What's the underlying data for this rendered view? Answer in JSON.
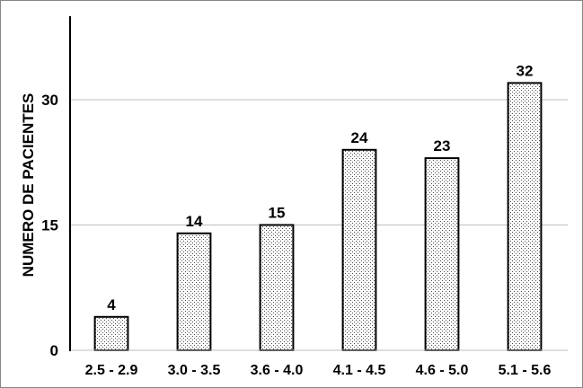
{
  "chart_data": {
    "type": "bar",
    "categories": [
      "2.5 - 2.9",
      "3.0 - 3.5",
      "3.6 - 4.0",
      "4.1 - 4.5",
      "4.6 - 5.0",
      "5.1 - 5.6"
    ],
    "values": [
      4,
      14,
      15,
      24,
      23,
      32
    ],
    "ylabel": "NUMERO DE PACIENTES",
    "ylim": [
      0,
      40
    ],
    "yticks": [
      0,
      15,
      30
    ],
    "grid": true,
    "data_labels": true
  },
  "colors": {
    "bar_fill": "#ffffff",
    "bar_dots": "#4a4a4a",
    "bar_border": "#000000",
    "grid": "#bfbfbf",
    "axis": "#000000",
    "frame": "#868686"
  }
}
